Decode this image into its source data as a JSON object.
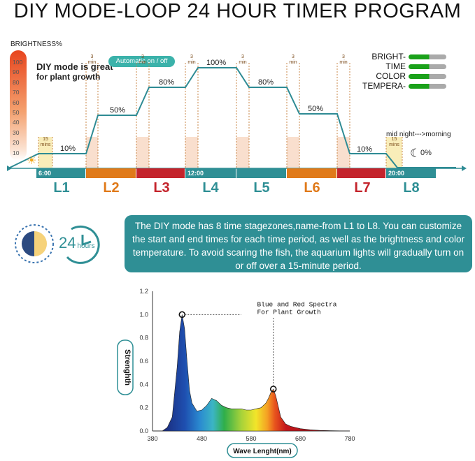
{
  "title": "DIY MODE-LOOP 24 HOUR TIMER PROGRAM",
  "brightness_label": "BRIGHTNESS%",
  "brightness_ticks": [
    "100",
    "90",
    "80",
    "70",
    "60",
    "50",
    "40",
    "30",
    "20",
    "10"
  ],
  "note": {
    "line1": "DIY mode is great",
    "line2": "for plant growth"
  },
  "auto_label": "Automatic on / off",
  "legend": [
    "BRIGHT-",
    "TIME",
    "COLOR",
    "TEMPERA-"
  ],
  "levels": [
    "10%",
    "50%",
    "80%",
    "100%",
    "80%",
    "50%",
    "10%",
    "0%"
  ],
  "transition": {
    "mins15": [
      "15",
      "mins"
    ],
    "min3": [
      "3",
      "min"
    ]
  },
  "times": {
    "t1": "6:00",
    "t4": "12:00",
    "t8": "20:00"
  },
  "stages": [
    "L1",
    "L2",
    "L3",
    "L4",
    "L5",
    "L6",
    "L7",
    "L8"
  ],
  "midnight": "mid night--->morning",
  "clock_text": {
    "num": "24",
    "unit": "hours"
  },
  "description": "The DIY mode has 8 time stagezones,name-from L1 to L8. You can customize the start and end times for each time period, as well as the brightness and color temperature. To avoid scaring the fish, the aquarium lights will gradually turn on or off over a 15-minute period.",
  "colors": {
    "teal": "#2f8f95",
    "orange": "#e07a1a",
    "red": "#c4242c",
    "line": "#2e8b94"
  },
  "chart_data": {
    "type": "area",
    "xlabel": "Wave Lenght(nm)",
    "ylabel": "Strenghth",
    "xlim": [
      380,
      780
    ],
    "ylim": [
      0,
      1.2
    ],
    "xticks": [
      "380",
      "480",
      "580",
      "680",
      "780"
    ],
    "yticks": [
      "0.0",
      "0.2",
      "0.4",
      "0.6",
      "0.8",
      "1.0",
      "1.2"
    ],
    "annotation": [
      "Blue and Red Spectra",
      "For Plant Growth"
    ],
    "x": [
      400,
      410,
      420,
      430,
      435,
      440,
      445,
      450,
      455,
      460,
      470,
      480,
      490,
      500,
      510,
      520,
      530,
      540,
      550,
      560,
      570,
      580,
      590,
      600,
      610,
      615,
      620,
      625,
      630,
      640,
      650,
      660,
      670,
      680,
      700,
      720,
      740,
      760,
      780
    ],
    "y": [
      0.0,
      0.03,
      0.12,
      0.55,
      0.85,
      1.0,
      0.88,
      0.6,
      0.35,
      0.24,
      0.17,
      0.18,
      0.22,
      0.28,
      0.26,
      0.22,
      0.2,
      0.19,
      0.19,
      0.19,
      0.18,
      0.18,
      0.19,
      0.2,
      0.24,
      0.28,
      0.33,
      0.36,
      0.3,
      0.12,
      0.06,
      0.04,
      0.03,
      0.02,
      0.01,
      0.005,
      0.003,
      0.001,
      0.0
    ],
    "peaks": [
      {
        "x": 440,
        "y": 1.0
      },
      {
        "x": 625,
        "y": 0.36
      }
    ]
  }
}
